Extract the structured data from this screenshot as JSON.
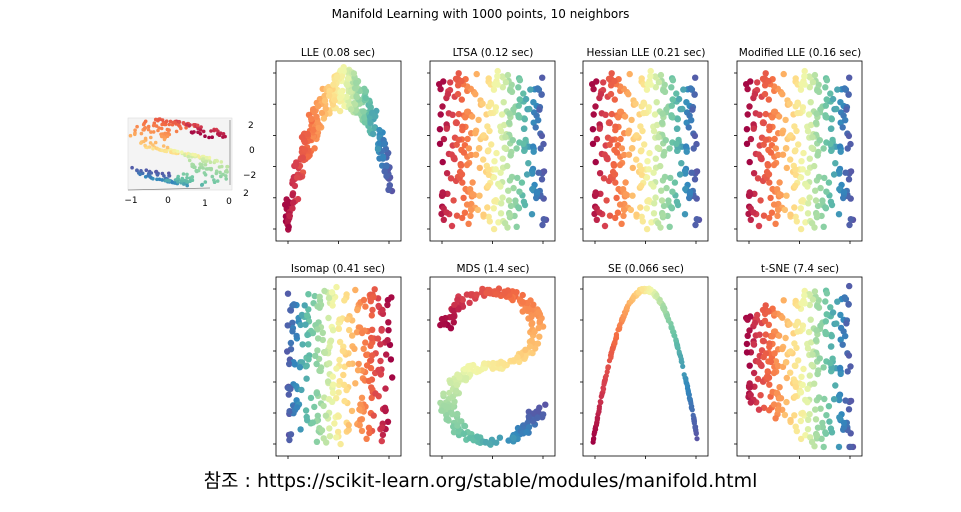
{
  "figure": {
    "title": "Manifold Learning with 1000 points, 10 neighbors",
    "caption": "참조 : https://scikit-learn.org/stable/modules/manifold.html"
  },
  "chart_data": [
    {
      "type": "scatter",
      "title": "",
      "description": "3D S-curve",
      "xticks": [
        "−1",
        "0",
        "1"
      ],
      "yticks": [
        "0",
        "2"
      ],
      "zticks": [
        "2",
        "0",
        "−2"
      ]
    },
    {
      "type": "scatter",
      "title": "LLE (0.08 sec)",
      "shape": "v"
    },
    {
      "type": "scatter",
      "title": "LTSA (0.12 sec)",
      "shape": "rect"
    },
    {
      "type": "scatter",
      "title": "Hessian LLE (0.21 sec)",
      "shape": "rect"
    },
    {
      "type": "scatter",
      "title": "Modified LLE (0.16 sec)",
      "shape": "rect"
    },
    {
      "type": "scatter",
      "title": "Isomap (0.41 sec)",
      "shape": "rect-rev"
    },
    {
      "type": "scatter",
      "title": "MDS (1.4 sec)",
      "shape": "s"
    },
    {
      "type": "scatter",
      "title": "SE (0.066 sec)",
      "shape": "arch"
    },
    {
      "type": "scatter",
      "title": "t-SNE (7.4 sec)",
      "shape": "rect-twist"
    }
  ]
}
